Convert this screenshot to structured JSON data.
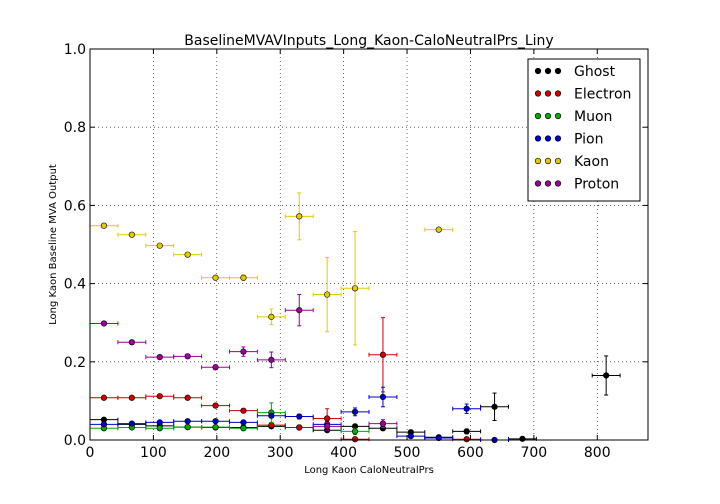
{
  "chart_data": {
    "type": "scatter",
    "title": "BaselineMVAVInputs_Long_Kaon-CaloNeutralPrs_Liny",
    "xlabel": "Long Kaon CaloNeutralPrs",
    "ylabel": "Long Kaon Baseline MVA Output",
    "xlim": [
      0,
      880
    ],
    "ylim": [
      0,
      1.0
    ],
    "grid": true,
    "legend_position": "top-right",
    "xticks": [
      0,
      100,
      200,
      300,
      400,
      500,
      600,
      700,
      800
    ],
    "xtick_labels": [
      "0",
      "100",
      "200",
      "300",
      "400",
      "500",
      "600",
      "700",
      "800"
    ],
    "yticks": [
      0.0,
      0.2,
      0.4,
      0.6,
      0.8,
      1.0
    ],
    "ytick_labels": [
      "0.0",
      "0.2",
      "0.4",
      "0.6",
      "0.8",
      "1.0"
    ],
    "series": [
      {
        "name": "Ghost",
        "color": "#000000",
        "points": [
          {
            "x": 22,
            "y": 0.052,
            "xerr": 22,
            "yerr": 0.004
          },
          {
            "x": 66,
            "y": 0.04,
            "xerr": 22,
            "yerr": 0.003
          },
          {
            "x": 110,
            "y": 0.036,
            "xerr": 22,
            "yerr": 0.003
          },
          {
            "x": 154,
            "y": 0.033,
            "xerr": 22,
            "yerr": 0.003
          },
          {
            "x": 198,
            "y": 0.032,
            "xerr": 22,
            "yerr": 0.003
          },
          {
            "x": 242,
            "y": 0.032,
            "xerr": 22,
            "yerr": 0.003
          },
          {
            "x": 286,
            "y": 0.035,
            "xerr": 22,
            "yerr": 0.004
          },
          {
            "x": 330,
            "y": 0.032,
            "xerr": 22,
            "yerr": 0.004
          },
          {
            "x": 374,
            "y": 0.025,
            "xerr": 22,
            "yerr": 0.004
          },
          {
            "x": 418,
            "y": 0.035,
            "xerr": 22,
            "yerr": 0.005
          },
          {
            "x": 462,
            "y": 0.03,
            "xerr": 22,
            "yerr": 0.005
          },
          {
            "x": 506,
            "y": 0.02,
            "xerr": 22,
            "yerr": 0.005
          },
          {
            "x": 550,
            "y": 0.007,
            "xerr": 22,
            "yerr": 0.003
          },
          {
            "x": 594,
            "y": 0.022,
            "xerr": 22,
            "yerr": 0.006
          },
          {
            "x": 638,
            "y": 0.085,
            "xerr": 22,
            "yerr": 0.035
          },
          {
            "x": 682,
            "y": 0.003,
            "xerr": 22,
            "yerr": 0.003
          },
          {
            "x": 814,
            "y": 0.165,
            "xerr": 22,
            "yerr": 0.05
          }
        ]
      },
      {
        "name": "Electron",
        "color": "#cc0000",
        "points": [
          {
            "x": 22,
            "y": 0.108,
            "xerr": 22,
            "yerr": 0.004
          },
          {
            "x": 66,
            "y": 0.108,
            "xerr": 22,
            "yerr": 0.004
          },
          {
            "x": 110,
            "y": 0.112,
            "xerr": 22,
            "yerr": 0.004
          },
          {
            "x": 154,
            "y": 0.108,
            "xerr": 22,
            "yerr": 0.004
          },
          {
            "x": 198,
            "y": 0.088,
            "xerr": 22,
            "yerr": 0.005
          },
          {
            "x": 242,
            "y": 0.075,
            "xerr": 22,
            "yerr": 0.005
          },
          {
            "x": 286,
            "y": 0.038,
            "xerr": 22,
            "yerr": 0.005
          },
          {
            "x": 330,
            "y": 0.032,
            "xerr": 22,
            "yerr": 0.006
          },
          {
            "x": 374,
            "y": 0.055,
            "xerr": 22,
            "yerr": 0.025
          },
          {
            "x": 418,
            "y": 0.002,
            "xerr": 22,
            "yerr": 0.002
          },
          {
            "x": 462,
            "y": 0.218,
            "xerr": 22,
            "yerr": 0.095
          },
          {
            "x": 594,
            "y": 0.002,
            "xerr": 22,
            "yerr": 0.002
          }
        ]
      },
      {
        "name": "Muon",
        "color": "#00aa00",
        "points": [
          {
            "x": 22,
            "y": 0.03,
            "xerr": 22,
            "yerr": 0.003
          },
          {
            "x": 66,
            "y": 0.032,
            "xerr": 22,
            "yerr": 0.003
          },
          {
            "x": 110,
            "y": 0.03,
            "xerr": 22,
            "yerr": 0.003
          },
          {
            "x": 154,
            "y": 0.033,
            "xerr": 22,
            "yerr": 0.003
          },
          {
            "x": 198,
            "y": 0.033,
            "xerr": 22,
            "yerr": 0.003
          },
          {
            "x": 242,
            "y": 0.03,
            "xerr": 22,
            "yerr": 0.004
          },
          {
            "x": 286,
            "y": 0.07,
            "xerr": 22,
            "yerr": 0.025
          },
          {
            "x": 418,
            "y": 0.022,
            "xerr": 22,
            "yerr": 0.008
          }
        ]
      },
      {
        "name": "Pion",
        "color": "#0000cc",
        "points": [
          {
            "x": 22,
            "y": 0.04,
            "xerr": 22,
            "yerr": 0.003
          },
          {
            "x": 66,
            "y": 0.042,
            "xerr": 22,
            "yerr": 0.003
          },
          {
            "x": 110,
            "y": 0.045,
            "xerr": 22,
            "yerr": 0.003
          },
          {
            "x": 154,
            "y": 0.048,
            "xerr": 22,
            "yerr": 0.003
          },
          {
            "x": 198,
            "y": 0.048,
            "xerr": 22,
            "yerr": 0.003
          },
          {
            "x": 242,
            "y": 0.045,
            "xerr": 22,
            "yerr": 0.004
          },
          {
            "x": 286,
            "y": 0.062,
            "xerr": 22,
            "yerr": 0.005
          },
          {
            "x": 330,
            "y": 0.06,
            "xerr": 22,
            "yerr": 0.006
          },
          {
            "x": 374,
            "y": 0.04,
            "xerr": 22,
            "yerr": 0.008
          },
          {
            "x": 418,
            "y": 0.072,
            "xerr": 22,
            "yerr": 0.01
          },
          {
            "x": 462,
            "y": 0.11,
            "xerr": 22,
            "yerr": 0.025
          },
          {
            "x": 506,
            "y": 0.01,
            "xerr": 22,
            "yerr": 0.005
          },
          {
            "x": 550,
            "y": 0.005,
            "xerr": 22,
            "yerr": 0.003
          },
          {
            "x": 594,
            "y": 0.08,
            "xerr": 22,
            "yerr": 0.012
          },
          {
            "x": 638,
            "y": 0.0,
            "xerr": 22,
            "yerr": 0.002
          }
        ]
      },
      {
        "name": "Kaon",
        "color": "#e6c800",
        "points": [
          {
            "x": 22,
            "y": 0.548,
            "xerr": 22,
            "yerr": 0.004
          },
          {
            "x": 66,
            "y": 0.525,
            "xerr": 22,
            "yerr": 0.004
          },
          {
            "x": 110,
            "y": 0.497,
            "xerr": 22,
            "yerr": 0.004
          },
          {
            "x": 154,
            "y": 0.474,
            "xerr": 22,
            "yerr": 0.005
          },
          {
            "x": 198,
            "y": 0.415,
            "xerr": 22,
            "yerr": 0.005
          },
          {
            "x": 242,
            "y": 0.415,
            "xerr": 22,
            "yerr": 0.007
          },
          {
            "x": 286,
            "y": 0.315,
            "xerr": 22,
            "yerr": 0.02
          },
          {
            "x": 330,
            "y": 0.572,
            "xerr": 22,
            "yerr": 0.06
          },
          {
            "x": 374,
            "y": 0.372,
            "xerr": 22,
            "yerr": 0.095
          },
          {
            "x": 418,
            "y": 0.388,
            "xerr": 22,
            "yerr": 0.145
          },
          {
            "x": 550,
            "y": 0.538,
            "xerr": 22,
            "yerr": 0.005
          }
        ]
      },
      {
        "name": "Proton",
        "color": "#990099",
        "points": [
          {
            "x": 22,
            "y": 0.298,
            "xerr": 22,
            "yerr": 0.004
          },
          {
            "x": 66,
            "y": 0.25,
            "xerr": 22,
            "yerr": 0.004
          },
          {
            "x": 110,
            "y": 0.212,
            "xerr": 22,
            "yerr": 0.004
          },
          {
            "x": 154,
            "y": 0.214,
            "xerr": 22,
            "yerr": 0.005
          },
          {
            "x": 198,
            "y": 0.186,
            "xerr": 22,
            "yerr": 0.006
          },
          {
            "x": 242,
            "y": 0.226,
            "xerr": 22,
            "yerr": 0.012
          },
          {
            "x": 286,
            "y": 0.205,
            "xerr": 22,
            "yerr": 0.02
          },
          {
            "x": 330,
            "y": 0.332,
            "xerr": 22,
            "yerr": 0.04
          },
          {
            "x": 374,
            "y": 0.035,
            "xerr": 22,
            "yerr": 0.01
          },
          {
            "x": 462,
            "y": 0.042,
            "xerr": 22,
            "yerr": 0.01
          }
        ]
      }
    ]
  }
}
